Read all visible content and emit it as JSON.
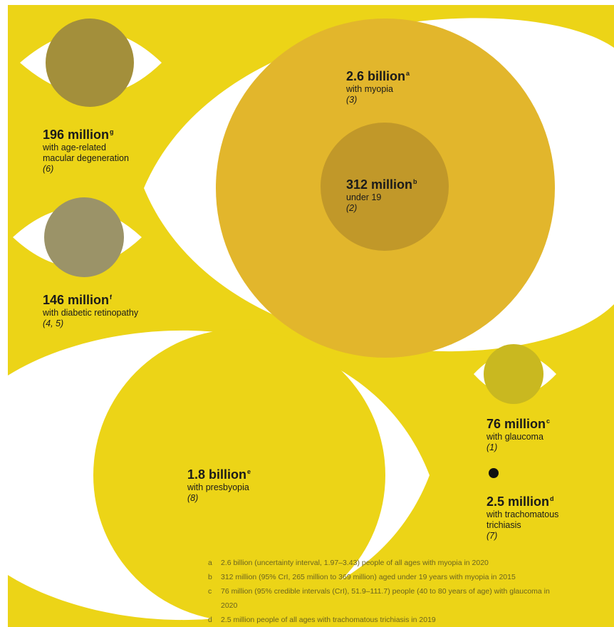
{
  "colors": {
    "background": "#ecd417",
    "eye_white": "#ffffff",
    "myopia": "#e2b62c",
    "myopia_under19": "#c19829",
    "amd": "#a38f3b",
    "diabetic_retinopathy": "#9b9368",
    "presbyopia": "#ecd417",
    "glaucoma": "#c9b820",
    "trichiasis": "#111111",
    "text": "#1a1a1a"
  },
  "chart_data": {
    "type": "bubble",
    "series": [
      {
        "value": "2.6 billion",
        "note": "a",
        "description": "with myopia",
        "ref": "(3)",
        "people_millions": 2600
      },
      {
        "value": "312 million",
        "note": "b",
        "description": "under 19",
        "ref": "(2)",
        "people_millions": 312
      },
      {
        "value": "196 million",
        "note": "g",
        "description": "with age-related macular degeneration",
        "ref": "(6)",
        "people_millions": 196
      },
      {
        "value": "146 million",
        "note": "f",
        "description": "with diabetic retinopathy",
        "ref": "(4, 5)",
        "people_millions": 146
      },
      {
        "value": "1.8 billion",
        "note": "e",
        "description": "with presbyopia",
        "ref": "(8)",
        "people_millions": 1800
      },
      {
        "value": "76 million",
        "note": "c",
        "description": "with glaucoma",
        "ref": "(1)",
        "people_millions": 76
      },
      {
        "value": "2.5 million",
        "note": "d",
        "description": "with trachomatous trichiasis",
        "ref": "(7)",
        "people_millions": 2.5
      }
    ]
  },
  "stats": {
    "myopia": {
      "value": "2.6 billion",
      "sup": "a",
      "line1": "with myopia",
      "ref": "(3)"
    },
    "under19": {
      "value": "312 million",
      "sup": "b",
      "line1": "under 19",
      "ref": "(2)"
    },
    "amd": {
      "value": "196 million",
      "sup": "g",
      "line1": "with age-related",
      "line2": "macular degeneration",
      "ref": "(6)"
    },
    "dr": {
      "value": "146 million",
      "sup": "f",
      "line1": "with diabetic retinopathy",
      "ref": "(4, 5)"
    },
    "presbyopia": {
      "value": "1.8 billion",
      "sup": "e",
      "line1": "with presbyopia",
      "ref": "(8)"
    },
    "glaucoma": {
      "value": "76 million",
      "sup": "c",
      "line1": "with glaucoma",
      "ref": "(1)"
    },
    "trichiasis": {
      "value": "2.5 million",
      "sup": "d",
      "line1": "with trachomatous",
      "line2": "trichiasis",
      "ref": "(7)"
    }
  },
  "footnotes": [
    {
      "key": "a",
      "text": "2.6 billion (uncertainty interval, 1.97–3.43) people of all ages with myopia in 2020"
    },
    {
      "key": "b",
      "text": "312 million (95% CrI, 265 million to 369 million) aged under 19 years with myopia in 2015"
    },
    {
      "key": "c",
      "text": "76 million (95% credible intervals (CrI), 51.9–111.7) people (40 to 80 years of age) with glaucoma in 2020"
    },
    {
      "key": "d",
      "text": "2.5 million people of all ages with trachomatous trichiasis in 2019"
    }
  ]
}
